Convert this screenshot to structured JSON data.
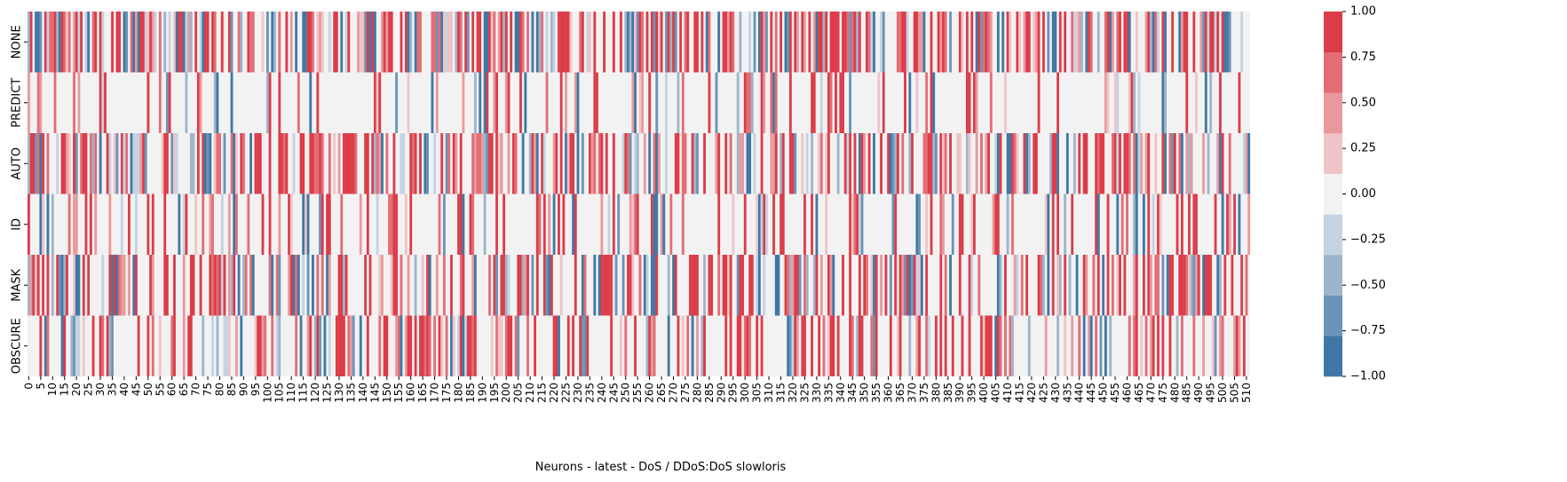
{
  "chart_data": {
    "type": "heatmap",
    "title": "",
    "xlabel": "Neurons - latest - DoS / DDoS:DoS slowloris",
    "ylabel": "",
    "rows": [
      "NONE",
      "PREDICT",
      "AUTO",
      "ID",
      "MASK",
      "OBSCURE"
    ],
    "x_count": 512,
    "x_tick_step": 5,
    "x_tick_labels": [
      "0",
      "5",
      "10",
      "15",
      "20",
      "25",
      "30",
      "35",
      "40",
      "45",
      "50",
      "55",
      "60",
      "65",
      "70",
      "75",
      "80",
      "85",
      "90",
      "95",
      "100",
      "105",
      "110",
      "115",
      "120",
      "125",
      "130",
      "135",
      "140",
      "145",
      "150",
      "155",
      "160",
      "165",
      "170",
      "175",
      "180",
      "185",
      "190",
      "195",
      "200",
      "205",
      "210",
      "215",
      "220",
      "225",
      "230",
      "235",
      "240",
      "245",
      "250",
      "255",
      "260",
      "265",
      "270",
      "275",
      "280",
      "285",
      "290",
      "295",
      "300",
      "305",
      "310",
      "315",
      "320",
      "325",
      "330",
      "335",
      "340",
      "345",
      "350",
      "355",
      "360",
      "365",
      "370",
      "375",
      "380",
      "385",
      "390",
      "395",
      "400",
      "405",
      "410",
      "415",
      "420",
      "425",
      "430",
      "435",
      "440",
      "445",
      "450",
      "455",
      "460",
      "465",
      "470",
      "475",
      "480",
      "485",
      "490",
      "495",
      "500",
      "505",
      "510"
    ],
    "value_range": [
      -1.0,
      1.0
    ],
    "colorbar": {
      "ticks": [
        1.0,
        0.75,
        0.5,
        0.25,
        0.0,
        -0.25,
        -0.5,
        -0.75,
        -1.0
      ],
      "tick_labels": [
        "1.00",
        "0.75",
        "0.50",
        "0.25",
        "0.00",
        "−0.25",
        "−0.50",
        "−0.75",
        "−1.00"
      ],
      "levels": 9,
      "colors_low_to_high": [
        "#3f78a6",
        "#6a94b8",
        "#9db5cc",
        "#c4d3e1",
        "#f2f2f2",
        "#f0c4c7",
        "#e9999e",
        "#e36d75",
        "#dc3c48"
      ]
    },
    "row_density": {
      "NONE": 0.62,
      "PREDICT": 0.2,
      "AUTO": 0.55,
      "ID": 0.28,
      "MASK": 0.5,
      "OBSCURE": 0.38
    },
    "grid": false,
    "legend": "colorbar-right"
  }
}
